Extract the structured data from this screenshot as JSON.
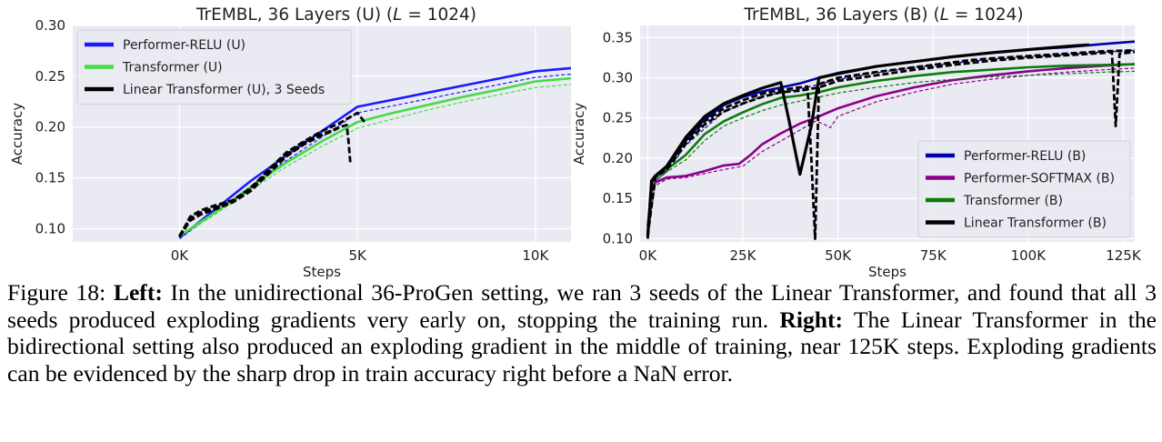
{
  "chart_data": [
    {
      "type": "line",
      "title_prefix": "TrEMBL, 36 Layers (U) (",
      "title_var": "L",
      "title_suffix": " = 1024)",
      "xlabel": "Steps",
      "ylabel": "Accuracy",
      "xlim": [
        -3000,
        11000
      ],
      "ylim": [
        0.087,
        0.3
      ],
      "xticks": [
        0,
        5000,
        10000
      ],
      "xtick_labels": [
        "0K",
        "5K",
        "10K"
      ],
      "yticks": [
        0.1,
        0.15,
        0.2,
        0.25,
        0.3
      ],
      "ytick_labels": [
        "0.10",
        "0.15",
        "0.20",
        "0.25",
        "0.30"
      ],
      "grid": true,
      "legend_position": "top-left",
      "legend": [
        "Performer-RELU (U)",
        "Transformer (U)",
        "Linear Transformer (U), 3 Seeds"
      ],
      "series": [
        {
          "name": "Performer-RELU (U)",
          "color": "#1a1aff",
          "style": "solid",
          "x": [
            0,
            1000,
            2000,
            3000,
            4000,
            5000,
            6000,
            7000,
            8000,
            9000,
            10000,
            11000
          ],
          "y": [
            0.091,
            0.119,
            0.147,
            0.172,
            0.196,
            0.22,
            0.227,
            0.234,
            0.241,
            0.248,
            0.255,
            0.258
          ]
        },
        {
          "color": "#1a1aff",
          "style": "dashed",
          "x": [
            0,
            1000,
            2000,
            3000,
            4000,
            5000,
            6000,
            7000,
            8000,
            9000,
            10000,
            11000
          ],
          "y": [
            0.09,
            0.116,
            0.142,
            0.167,
            0.19,
            0.214,
            0.221,
            0.228,
            0.235,
            0.242,
            0.249,
            0.252
          ]
        },
        {
          "name": "Transformer (U)",
          "color": "#44dd44",
          "style": "solid",
          "x": [
            0,
            1000,
            2000,
            3000,
            4000,
            5000,
            6000,
            7000,
            8000,
            9000,
            10000,
            11000
          ],
          "y": [
            0.093,
            0.116,
            0.141,
            0.165,
            0.186,
            0.205,
            0.214,
            0.222,
            0.23,
            0.237,
            0.245,
            0.248
          ]
        },
        {
          "color": "#44dd44",
          "style": "dashed",
          "x": [
            0,
            1000,
            2000,
            3000,
            4000,
            5000,
            6000,
            7000,
            8000,
            9000,
            10000,
            11000
          ],
          "y": [
            0.092,
            0.114,
            0.138,
            0.161,
            0.181,
            0.199,
            0.208,
            0.217,
            0.225,
            0.232,
            0.239,
            0.242
          ]
        },
        {
          "name": "Linear Transformer (U), 3 Seeds",
          "color": "#000000",
          "style": "dashed",
          "x": [
            0,
            300,
            600,
            1000,
            1500,
            2000,
            2500,
            3000,
            3500,
            4000,
            4500,
            4800,
            5000,
            5200
          ],
          "y": [
            0.092,
            0.112,
            0.118,
            0.123,
            0.128,
            0.14,
            0.158,
            0.175,
            0.186,
            0.196,
            0.204,
            0.21,
            0.214,
            0.205
          ]
        },
        {
          "color": "#000000",
          "style": "dashed",
          "x": [
            0,
            300,
            600,
            1000,
            1500,
            2000,
            2500,
            3000,
            3500,
            4000,
            4300,
            4500,
            4700,
            4750,
            4800
          ],
          "y": [
            0.093,
            0.11,
            0.116,
            0.121,
            0.127,
            0.139,
            0.156,
            0.173,
            0.185,
            0.193,
            0.197,
            0.2,
            0.202,
            0.185,
            0.165
          ]
        },
        {
          "color": "#000000",
          "style": "dashed",
          "x": [
            0,
            300,
            600,
            1000,
            1500,
            2000,
            2500,
            3000,
            3500,
            4000,
            4300,
            4500
          ],
          "y": [
            0.092,
            0.108,
            0.114,
            0.119,
            0.126,
            0.137,
            0.154,
            0.171,
            0.183,
            0.192,
            0.196,
            0.2
          ]
        }
      ]
    },
    {
      "type": "line",
      "title_prefix": "TrEMBL, 36 Layers (B) (",
      "title_var": "L",
      "title_suffix": " = 1024)",
      "xlabel": "Steps",
      "ylabel": "Accuracy",
      "xlim": [
        -2000,
        128000
      ],
      "ylim": [
        0.096,
        0.365
      ],
      "xticks": [
        0,
        25000,
        50000,
        75000,
        100000,
        125000
      ],
      "xtick_labels": [
        "0K",
        "25K",
        "50K",
        "75K",
        "100K",
        "125K"
      ],
      "yticks": [
        0.1,
        0.15,
        0.2,
        0.25,
        0.3,
        0.35
      ],
      "ytick_labels": [
        "0.10",
        "0.15",
        "0.20",
        "0.25",
        "0.30",
        "0.35"
      ],
      "grid": true,
      "legend_position": "bottom-right",
      "legend": [
        "Performer-RELU (B)",
        "Performer-SOFTMAX (B)",
        "Transformer (B)",
        "Linear Transformer (B)"
      ],
      "series": [
        {
          "name": "Performer-RELU (B)",
          "color": "#0000aa",
          "style": "solid",
          "x": [
            0,
            1000,
            2000,
            5000,
            10000,
            15000,
            20000,
            25000,
            30000,
            35000,
            40000,
            45000,
            50000,
            60000,
            70000,
            80000,
            90000,
            100000,
            110000,
            120000,
            128000
          ],
          "y": [
            0.105,
            0.17,
            0.178,
            0.188,
            0.222,
            0.248,
            0.266,
            0.276,
            0.283,
            0.288,
            0.293,
            0.3,
            0.306,
            0.314,
            0.32,
            0.326,
            0.331,
            0.335,
            0.338,
            0.342,
            0.345
          ]
        },
        {
          "color": "#0000aa",
          "style": "dashed",
          "x": [
            0,
            2000,
            5000,
            10000,
            20000,
            30000,
            40000,
            50000,
            60000,
            70000,
            80000,
            90000,
            100000,
            110000,
            120000,
            128000
          ],
          "y": [
            0.102,
            0.172,
            0.183,
            0.216,
            0.258,
            0.277,
            0.286,
            0.298,
            0.306,
            0.313,
            0.318,
            0.323,
            0.326,
            0.329,
            0.332,
            0.334
          ]
        },
        {
          "name": "Performer-SOFTMAX (B)",
          "color": "#8b008b",
          "style": "solid",
          "x": [
            0,
            1000,
            2000,
            5000,
            10000,
            15000,
            20000,
            24000,
            27000,
            30000,
            35000,
            40000,
            45000,
            50000,
            60000,
            70000,
            80000,
            90000,
            100000,
            110000,
            120000,
            128000
          ],
          "y": [
            0.115,
            0.16,
            0.17,
            0.176,
            0.178,
            0.184,
            0.191,
            0.193,
            0.204,
            0.217,
            0.231,
            0.243,
            0.252,
            0.262,
            0.277,
            0.288,
            0.297,
            0.303,
            0.308,
            0.312,
            0.315,
            0.317
          ]
        },
        {
          "color": "#8b008b",
          "style": "dashed",
          "x": [
            0,
            2000,
            5000,
            10000,
            20000,
            25000,
            30000,
            40000,
            44000,
            46000,
            48000,
            50000,
            60000,
            70000,
            80000,
            90000,
            100000,
            110000,
            120000,
            128000
          ],
          "y": [
            0.11,
            0.166,
            0.174,
            0.176,
            0.186,
            0.19,
            0.208,
            0.235,
            0.246,
            0.243,
            0.238,
            0.252,
            0.27,
            0.282,
            0.292,
            0.298,
            0.303,
            0.307,
            0.31,
            0.312
          ]
        },
        {
          "name": "Transformer (B)",
          "color": "#0a7d0a",
          "style": "solid",
          "x": [
            0,
            1000,
            2000,
            5000,
            10000,
            15000,
            20000,
            25000,
            30000,
            35000,
            40000,
            45000,
            50000,
            60000,
            70000,
            80000,
            90000,
            100000,
            110000,
            120000,
            128000
          ],
          "y": [
            0.108,
            0.168,
            0.176,
            0.186,
            0.204,
            0.23,
            0.246,
            0.257,
            0.267,
            0.275,
            0.278,
            0.282,
            0.288,
            0.296,
            0.302,
            0.307,
            0.31,
            0.313,
            0.315,
            0.316,
            0.317
          ]
        },
        {
          "color": "#0a7d0a",
          "style": "dashed",
          "x": [
            0,
            2000,
            5000,
            10000,
            15000,
            20000,
            25000,
            30000,
            35000,
            40000,
            45000,
            50000,
            60000,
            70000,
            80000,
            90000,
            100000,
            110000,
            120000,
            128000
          ],
          "y": [
            0.106,
            0.172,
            0.183,
            0.198,
            0.222,
            0.24,
            0.25,
            0.259,
            0.266,
            0.271,
            0.276,
            0.281,
            0.288,
            0.294,
            0.298,
            0.301,
            0.303,
            0.305,
            0.307,
            0.308
          ]
        },
        {
          "name": "Linear Transformer (B)",
          "color": "#000000",
          "style": "solid",
          "x": [
            0,
            1000,
            2000,
            5000,
            10000,
            15000,
            20000,
            25000,
            30000,
            35000,
            37000,
            40000,
            43000,
            45000,
            50000,
            60000,
            70000,
            80000,
            90000,
            100000,
            110000,
            116000
          ],
          "y": [
            0.103,
            0.172,
            0.178,
            0.19,
            0.226,
            0.252,
            0.268,
            0.278,
            0.287,
            0.294,
            0.25,
            0.18,
            0.24,
            0.3,
            0.305,
            0.314,
            0.32,
            0.326,
            0.331,
            0.335,
            0.339,
            0.341
          ]
        },
        {
          "color": "#000000",
          "style": "dashed",
          "x": [
            0,
            1000,
            2000,
            5000,
            10000,
            15000,
            20000,
            25000,
            30000,
            35000,
            40000,
            42000,
            43000,
            44000,
            45000,
            50000,
            60000,
            70000,
            80000,
            85000,
            90000,
            100000,
            110000,
            120000,
            128000
          ],
          "y": [
            0.1,
            0.172,
            0.178,
            0.19,
            0.222,
            0.246,
            0.262,
            0.272,
            0.28,
            0.285,
            0.288,
            0.289,
            0.2,
            0.1,
            0.292,
            0.3,
            0.307,
            0.313,
            0.319,
            0.322,
            0.324,
            0.327,
            0.33,
            0.333,
            0.334
          ]
        },
        {
          "color": "#000000",
          "style": "dashed",
          "x": [
            0,
            2000,
            5000,
            10000,
            15000,
            20000,
            25000,
            30000,
            35000,
            40000,
            45000,
            50000,
            60000,
            70000,
            80000,
            90000,
            100000,
            110000,
            120000,
            122000,
            123000,
            124000,
            126000,
            128000
          ],
          "y": [
            0.104,
            0.176,
            0.186,
            0.218,
            0.242,
            0.258,
            0.268,
            0.276,
            0.282,
            0.284,
            0.288,
            0.296,
            0.303,
            0.31,
            0.316,
            0.321,
            0.325,
            0.328,
            0.331,
            0.332,
            0.24,
            0.33,
            0.331,
            0.332
          ]
        }
      ]
    }
  ],
  "caption": {
    "label": "Figure 18:",
    "left_head": "Left:",
    "left_text": "In the unidirectional 36-ProGen setting, we ran 3 seeds of the Linear Transformer, and found that all 3 seeds produced exploding gradients very early on, stopping the training run.",
    "right_head": "Right:",
    "right_text": "The Linear Transformer in the bidirectional setting also produced an exploding gradient in the middle of training, near 125K steps. Exploding gradients can be evidenced by the sharp drop in train accuracy right before a NaN error."
  }
}
